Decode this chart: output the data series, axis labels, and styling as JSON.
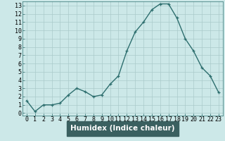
{
  "x": [
    0,
    1,
    2,
    3,
    4,
    5,
    6,
    7,
    8,
    9,
    10,
    11,
    12,
    13,
    14,
    15,
    16,
    17,
    18,
    19,
    20,
    21,
    22,
    23
  ],
  "y": [
    1.5,
    0.2,
    1.0,
    1.0,
    1.2,
    2.2,
    3.0,
    2.6,
    2.0,
    2.2,
    3.5,
    4.5,
    7.5,
    9.8,
    11.0,
    12.5,
    13.2,
    13.2,
    11.5,
    9.0,
    7.5,
    5.5,
    4.5,
    2.5
  ],
  "line_color": "#2d6e6e",
  "marker": "+",
  "markersize": 3.5,
  "linewidth": 1.0,
  "xlabel": "Humidex (Indice chaleur)",
  "xlim": [
    -0.5,
    23.5
  ],
  "ylim": [
    -0.3,
    13.5
  ],
  "yticks": [
    0,
    1,
    2,
    3,
    4,
    5,
    6,
    7,
    8,
    9,
    10,
    11,
    12,
    13
  ],
  "xticks": [
    0,
    1,
    2,
    3,
    4,
    5,
    6,
    7,
    8,
    9,
    10,
    11,
    12,
    13,
    14,
    15,
    16,
    17,
    18,
    19,
    20,
    21,
    22,
    23
  ],
  "bg_color": "#cce8e8",
  "grid_color": "#aacaca",
  "xlabel_fontsize": 7.5,
  "tick_fontsize": 6.0,
  "bottom_bar_color": "#3a6060"
}
